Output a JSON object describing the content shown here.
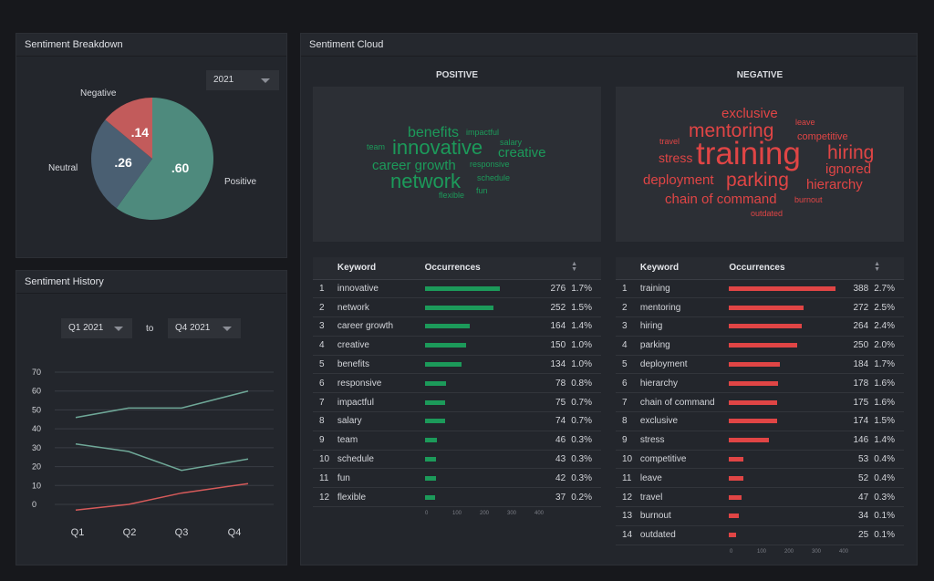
{
  "breakdown": {
    "title": "Sentiment Breakdown",
    "year": "2021",
    "slices": [
      {
        "label": "Positive",
        "value": 0.6,
        "display": ".60",
        "color": "#4e8a7d"
      },
      {
        "label": "Neutral",
        "value": 0.26,
        "display": ".26",
        "color": "#4a5f72"
      },
      {
        "label": "Negative",
        "value": 0.14,
        "display": ".14",
        "color": "#c25b5b"
      }
    ]
  },
  "history": {
    "title": "Sentiment History",
    "from": "Q1 2021",
    "to_label": "to",
    "to": "Q4 2021"
  },
  "chart_data": {
    "type": "line",
    "categories": [
      "Q1",
      "Q2",
      "Q3",
      "Q4"
    ],
    "yticks": [
      "70",
      "60",
      "50",
      "40",
      "30",
      "20",
      "10",
      "0"
    ],
    "ylim": [
      0,
      70
    ],
    "series": [
      {
        "values": [
          46,
          51,
          51,
          60
        ],
        "color": "#6fa898"
      },
      {
        "values": [
          32,
          28,
          18,
          24
        ],
        "color": "#6fa898"
      },
      {
        "values": [
          -3,
          0,
          6,
          11
        ],
        "color": "#d65a5a"
      }
    ]
  },
  "cloud": {
    "title": "Sentiment Cloud",
    "positive_label": "POSITIVE",
    "negative_label": "NEGATIVE",
    "positive_color": "#1c9a5a",
    "negative_color": "#e04545",
    "positive_words": [
      "benefits",
      "impactful",
      "salary",
      "team",
      "innovative",
      "responsive",
      "creative",
      "career growth",
      "network",
      "schedule",
      "flexible",
      "fun"
    ],
    "negative_words": [
      "exclusive",
      "leave",
      "mentoring",
      "travel",
      "competitive",
      "training",
      "hiring",
      "stress",
      "ignored",
      "deployment",
      "parking",
      "hierarchy",
      "chain of command",
      "burnout",
      "outdated"
    ]
  },
  "tables": {
    "keyword_header": "Keyword",
    "occurrences_header": "Occurrences",
    "axis_ticks": [
      "0",
      "100",
      "200",
      "300",
      "400"
    ],
    "positive_rows": [
      {
        "rank": "1",
        "keyword": "innovative",
        "count": "276",
        "pct": "1.7%",
        "value": 276
      },
      {
        "rank": "2",
        "keyword": "network",
        "count": "252",
        "pct": "1.5%",
        "value": 252
      },
      {
        "rank": "3",
        "keyword": "career growth",
        "count": "164",
        "pct": "1.4%",
        "value": 164
      },
      {
        "rank": "4",
        "keyword": "creative",
        "count": "150",
        "pct": "1.0%",
        "value": 150
      },
      {
        "rank": "5",
        "keyword": "benefits",
        "count": "134",
        "pct": "1.0%",
        "value": 134
      },
      {
        "rank": "6",
        "keyword": "responsive",
        "count": "78",
        "pct": "0.8%",
        "value": 78
      },
      {
        "rank": "7",
        "keyword": "impactful",
        "count": "75",
        "pct": "0.7%",
        "value": 75
      },
      {
        "rank": "8",
        "keyword": "salary",
        "count": "74",
        "pct": "0.7%",
        "value": 74
      },
      {
        "rank": "9",
        "keyword": "team",
        "count": "46",
        "pct": "0.3%",
        "value": 46
      },
      {
        "rank": "10",
        "keyword": "schedule",
        "count": "43",
        "pct": "0.3%",
        "value": 43
      },
      {
        "rank": "11",
        "keyword": "fun",
        "count": "42",
        "pct": "0.3%",
        "value": 42
      },
      {
        "rank": "12",
        "keyword": "flexible",
        "count": "37",
        "pct": "0.2%",
        "value": 37
      }
    ],
    "negative_rows": [
      {
        "rank": "1",
        "keyword": "training",
        "count": "388",
        "pct": "2.7%",
        "value": 388
      },
      {
        "rank": "2",
        "keyword": "mentoring",
        "count": "272",
        "pct": "2.5%",
        "value": 272
      },
      {
        "rank": "3",
        "keyword": "hiring",
        "count": "264",
        "pct": "2.4%",
        "value": 264
      },
      {
        "rank": "4",
        "keyword": "parking",
        "count": "250",
        "pct": "2.0%",
        "value": 250
      },
      {
        "rank": "5",
        "keyword": "deployment",
        "count": "184",
        "pct": "1.7%",
        "value": 184
      },
      {
        "rank": "6",
        "keyword": "hierarchy",
        "count": "178",
        "pct": "1.6%",
        "value": 178
      },
      {
        "rank": "7",
        "keyword": "chain of command",
        "count": "175",
        "pct": "1.6%",
        "value": 175
      },
      {
        "rank": "8",
        "keyword": "exclusive",
        "count": "174",
        "pct": "1.5%",
        "value": 174
      },
      {
        "rank": "9",
        "keyword": "stress",
        "count": "146",
        "pct": "1.4%",
        "value": 146
      },
      {
        "rank": "10",
        "keyword": "competitive",
        "count": "53",
        "pct": "0.4%",
        "value": 53
      },
      {
        "rank": "11",
        "keyword": "leave",
        "count": "52",
        "pct": "0.4%",
        "value": 52
      },
      {
        "rank": "12",
        "keyword": "travel",
        "count": "47",
        "pct": "0.3%",
        "value": 47
      },
      {
        "rank": "13",
        "keyword": "burnout",
        "count": "34",
        "pct": "0.1%",
        "value": 34
      },
      {
        "rank": "14",
        "keyword": "outdated",
        "count": "25",
        "pct": "0.1%",
        "value": 25
      }
    ]
  }
}
